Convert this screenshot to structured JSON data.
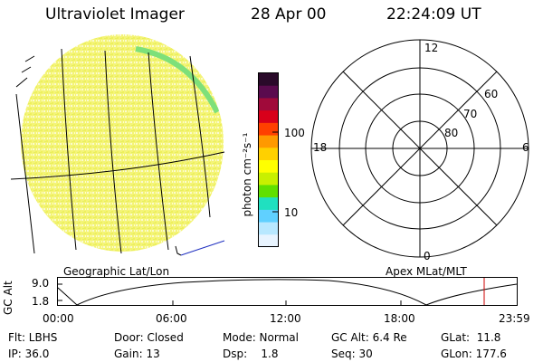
{
  "header": {
    "title": "Ultraviolet Imager",
    "date": "28 Apr 00",
    "time": "22:24:09 UT"
  },
  "left_panel": {
    "label": "Geographic Lat/Lon"
  },
  "colorbar": {
    "unit_label": "photon cm⁻²s⁻¹",
    "ticks": [
      {
        "value": "100"
      },
      {
        "value": "10"
      }
    ],
    "colors": [
      "#2a0a2a",
      "#5a0b4e",
      "#a00a3a",
      "#d8001a",
      "#ff4000",
      "#ff9900",
      "#ffd000",
      "#ffff00",
      "#c8f000",
      "#60e000",
      "#20e0c0",
      "#60d0ff",
      "#b8e8ff",
      "#e8f4ff"
    ]
  },
  "polar_plot": {
    "label": "Apex MLat/MLT",
    "mlt_labels": {
      "top": "12",
      "left": "18",
      "right": "6",
      "bottom": "0"
    },
    "mlat_labels": [
      "60",
      "70",
      "80"
    ]
  },
  "timeline": {
    "ylabel": "GC Alt",
    "y_ticks": [
      "9.0",
      "1.8"
    ],
    "x_ticks": [
      "00:00",
      "06:00",
      "12:00",
      "18:00",
      "23:59"
    ],
    "current_marker_color": "#cc0000",
    "curve_color": "#000000"
  },
  "info": {
    "row1": [
      {
        "key": "flt",
        "text": "Flt: LBHS"
      },
      {
        "key": "door",
        "text": "Door: Closed"
      },
      {
        "key": "mode",
        "text": "Mode: Normal"
      },
      {
        "key": "gcalt",
        "text": "GC Alt: 6.4 Re"
      },
      {
        "key": "glat",
        "text": "GLat:  11.8"
      }
    ],
    "row2": [
      {
        "key": "ip",
        "text": "IP: 36.0"
      },
      {
        "key": "gain",
        "text": "Gain: 13"
      },
      {
        "key": "dsp",
        "text": "Dsp:    1.8"
      },
      {
        "key": "seq",
        "text": "Seq: 30"
      },
      {
        "key": "glon",
        "text": "GLon: 177.6"
      }
    ]
  }
}
